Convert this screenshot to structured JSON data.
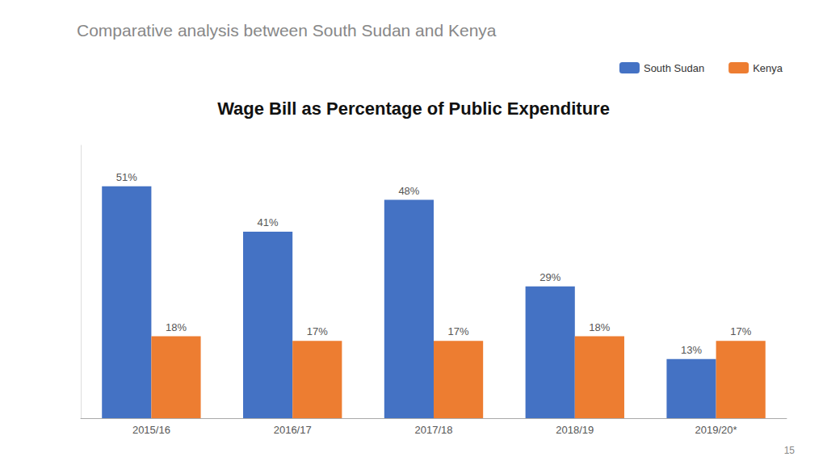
{
  "chart_data": {
    "type": "bar",
    "title": "Wage Bill as Percentage of Public Expenditure",
    "subtitle": "Comparative analysis between South Sudan and Kenya",
    "categories": [
      "2015/16",
      "2016/17",
      "2017/18",
      "2018/19",
      "2019/20*"
    ],
    "series": [
      {
        "name": "South Sudan",
        "color": "#4472C4",
        "values": [
          51,
          41,
          48,
          29,
          13
        ],
        "value_labels": [
          "51%",
          "41%",
          "48%",
          "29%",
          "13%"
        ]
      },
      {
        "name": "Kenya",
        "color": "#ED7D31",
        "values": [
          18,
          17,
          17,
          18,
          17
        ],
        "value_labels": [
          "18%",
          "17%",
          "17%",
          "18%",
          "17%"
        ]
      }
    ],
    "ylim": [
      0,
      60
    ],
    "grid": false,
    "legend": "upper right",
    "data_labels": true,
    "tick_labels": "x",
    "annotations": [
      {
        "text": "15"
      }
    ]
  }
}
